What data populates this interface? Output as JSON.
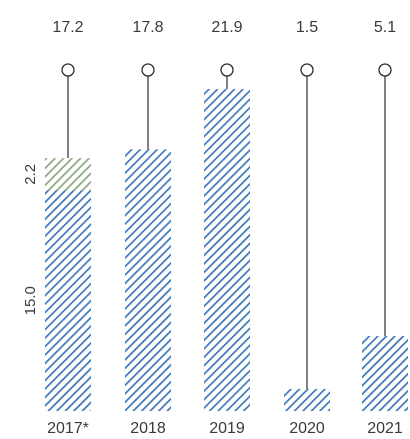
{
  "chart_data": {
    "type": "bar",
    "categories": [
      "2017*",
      "2018",
      "2019",
      "2020",
      "2021"
    ],
    "values": [
      17.2,
      17.8,
      21.9,
      1.5,
      5.1
    ],
    "top_labels": [
      "17.2",
      "17.8",
      "21.9",
      "1.5",
      "5.1"
    ],
    "segments_first_bar": [
      {
        "value": 15.0,
        "label": "15.0",
        "color": "#3f76b8"
      },
      {
        "value": 2.2,
        "label": "2.2",
        "color": "#8aa87e"
      }
    ],
    "ylim": [
      0,
      24
    ],
    "grid": false,
    "colors": {
      "bar_hatch": "#3f76b8",
      "segment_hatch": "#8aa87e",
      "stem": "#2b2b2b",
      "text": "#3a3a3a"
    }
  }
}
